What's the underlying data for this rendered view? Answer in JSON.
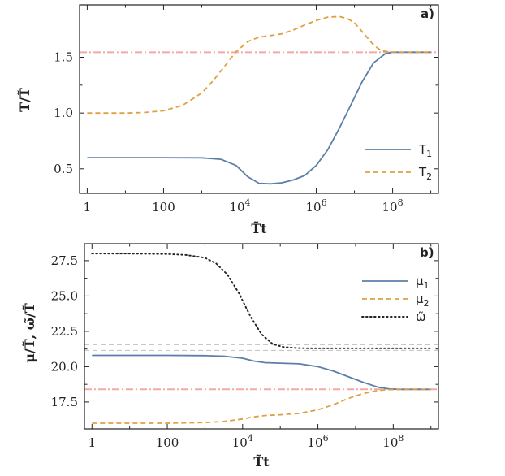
{
  "chart_data": [
    {
      "type": "line",
      "panel_label": "a)",
      "xlabel": "T̃t",
      "ylabel": "T/T̃",
      "x_scale": "log10",
      "xlim_log10": [
        -0.2,
        9.2
      ],
      "ylim": [
        0.28,
        1.97
      ],
      "x_ticks": [
        {
          "log10": 0,
          "label": "1",
          "pow": ""
        },
        {
          "log10": 2,
          "label": "100",
          "pow": ""
        },
        {
          "log10": 4,
          "label": "10",
          "pow": "4"
        },
        {
          "log10": 6,
          "label": "10",
          "pow": "6"
        },
        {
          "log10": 8,
          "label": "10",
          "pow": "8"
        }
      ],
      "y_ticks": [
        {
          "v": 0.5,
          "label": "0.5"
        },
        {
          "v": 1.0,
          "label": "1.0"
        },
        {
          "v": 1.5,
          "label": "1.5"
        }
      ],
      "legend_position": "bottom-right",
      "series": [
        {
          "name": "T",
          "sub": "1",
          "style": "solid",
          "color": "#5b7fa8",
          "log10_t": [
            0,
            1,
            2,
            3,
            3.5,
            3.9,
            4.2,
            4.5,
            4.8,
            5.1,
            5.4,
            5.7,
            6.0,
            6.3,
            6.6,
            6.9,
            7.2,
            7.5,
            7.8,
            8.0,
            8.3,
            8.6,
            9.0
          ],
          "values": [
            0.6,
            0.6,
            0.6,
            0.598,
            0.585,
            0.53,
            0.43,
            0.37,
            0.365,
            0.375,
            0.4,
            0.44,
            0.53,
            0.67,
            0.86,
            1.07,
            1.28,
            1.45,
            1.53,
            1.545,
            1.545,
            1.545,
            1.545
          ]
        },
        {
          "name": "T",
          "sub": "2",
          "style": "dashed",
          "color": "#e0a040",
          "log10_t": [
            0,
            1,
            1.5,
            2,
            2.5,
            3.0,
            3.3,
            3.6,
            3.9,
            4.2,
            4.5,
            4.8,
            5.1,
            5.4,
            5.7,
            6.0,
            6.3,
            6.6,
            6.8,
            7.0,
            7.2,
            7.5,
            7.7,
            7.9,
            8.1,
            8.4,
            9.0
          ],
          "values": [
            1.0,
            1.0,
            1.005,
            1.02,
            1.07,
            1.18,
            1.29,
            1.42,
            1.55,
            1.64,
            1.68,
            1.695,
            1.71,
            1.745,
            1.79,
            1.83,
            1.86,
            1.865,
            1.85,
            1.81,
            1.73,
            1.61,
            1.56,
            1.548,
            1.545,
            1.545,
            1.545
          ]
        }
      ],
      "hlines": [
        {
          "v": 1.545,
          "style": "dashdot",
          "color": "#f2aaa6"
        }
      ]
    },
    {
      "type": "line",
      "panel_label": "b)",
      "xlabel": "T̃t",
      "ylabel": "μ/T̃, ω̃/T̃",
      "x_scale": "log10",
      "xlim_log10": [
        -0.2,
        9.2
      ],
      "ylim": [
        15.6,
        28.7
      ],
      "x_ticks": [
        {
          "log10": 0,
          "label": "1",
          "pow": ""
        },
        {
          "log10": 2,
          "label": "100",
          "pow": ""
        },
        {
          "log10": 4,
          "label": "10",
          "pow": "4"
        },
        {
          "log10": 6,
          "label": "10",
          "pow": "6"
        },
        {
          "log10": 8,
          "label": "10",
          "pow": "8"
        }
      ],
      "y_ticks": [
        {
          "v": 17.5,
          "label": "17.5"
        },
        {
          "v": 20.0,
          "label": "20.0"
        },
        {
          "v": 22.5,
          "label": "22.5"
        },
        {
          "v": 25.0,
          "label": "25.0"
        },
        {
          "v": 27.5,
          "label": "27.5"
        }
      ],
      "legend_position": "top-right",
      "series": [
        {
          "name": "μ",
          "sub": "1",
          "style": "solid",
          "color": "#5b7fa8",
          "log10_t": [
            0,
            1,
            2,
            3,
            3.5,
            4.0,
            4.3,
            4.6,
            5.0,
            5.5,
            6.0,
            6.4,
            6.8,
            7.2,
            7.6,
            7.9,
            8.2,
            9.0
          ],
          "values": [
            20.8,
            20.8,
            20.8,
            20.78,
            20.74,
            20.6,
            20.4,
            20.28,
            20.25,
            20.2,
            20.0,
            19.7,
            19.3,
            18.9,
            18.55,
            18.42,
            18.4,
            18.4
          ]
        },
        {
          "name": "μ",
          "sub": "2",
          "style": "dashed",
          "color": "#e0a040",
          "log10_t": [
            0,
            1,
            2,
            3,
            3.5,
            4.0,
            4.3,
            4.6,
            5.0,
            5.5,
            6.0,
            6.4,
            6.8,
            7.2,
            7.6,
            7.9,
            8.2,
            9.0
          ],
          "values": [
            16.0,
            16.0,
            16.0,
            16.05,
            16.12,
            16.3,
            16.45,
            16.55,
            16.6,
            16.7,
            16.95,
            17.3,
            17.75,
            18.1,
            18.32,
            18.38,
            18.4,
            18.4
          ]
        },
        {
          "name": "ω̃",
          "sub": "",
          "style": "dotted",
          "color": "#222222",
          "log10_t": [
            0,
            1,
            2,
            2.5,
            3.0,
            3.3,
            3.6,
            3.9,
            4.2,
            4.5,
            4.8,
            5.1,
            5.4,
            5.7,
            6.0,
            7.0,
            8.0,
            9.0
          ],
          "values": [
            28.0,
            28.0,
            27.97,
            27.9,
            27.7,
            27.3,
            26.5,
            25.2,
            23.6,
            22.3,
            21.6,
            21.38,
            21.32,
            21.3,
            21.3,
            21.3,
            21.3,
            21.3
          ]
        }
      ],
      "hlines": [
        {
          "v": 21.55,
          "style": "dashed",
          "color": "#c8c8c8"
        },
        {
          "v": 21.15,
          "style": "dashed",
          "color": "#c8c8c8"
        },
        {
          "v": 18.4,
          "style": "dashdot",
          "color": "#f2aaa6"
        }
      ]
    }
  ]
}
